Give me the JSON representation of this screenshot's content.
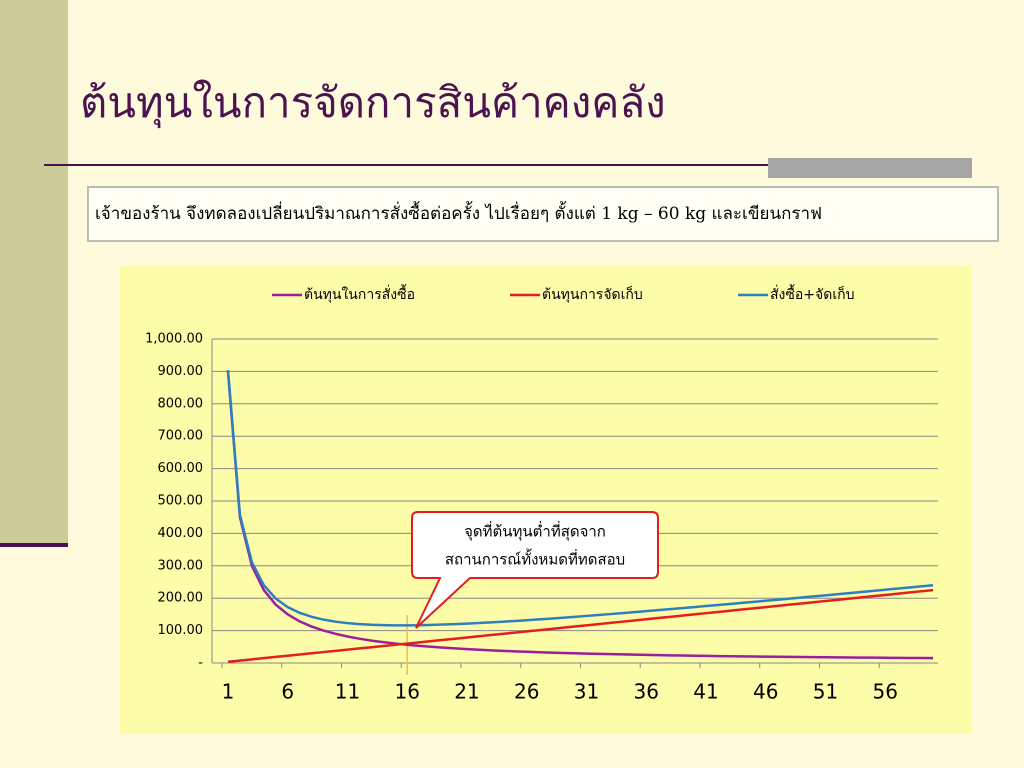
{
  "slide": {
    "title": "ต้นทุนในการจัดการสินค้าคงคลัง",
    "text": "เจ้าของร้าน จึงทดลองเปลี่ยนปริมาณการสั่งซื้อต่อครั้ง ไปเรื่อยๆ ตั้งแต่ 1 kg – 60 kg และเขียนกราฟ"
  },
  "chart_data": {
    "type": "line",
    "annotation": [
      "จุดที่ต้นทุนต่ำที่สุดจาก",
      "สถานการณ์ทั้งหมดที่ทดสอบ"
    ],
    "vline": 16,
    "x": [
      1,
      2,
      3,
      4,
      5,
      6,
      7,
      8,
      9,
      10,
      11,
      12,
      13,
      14,
      15,
      16,
      17,
      18,
      19,
      20,
      21,
      22,
      23,
      24,
      25,
      26,
      27,
      28,
      29,
      30,
      31,
      32,
      33,
      34,
      35,
      36,
      37,
      38,
      39,
      40,
      41,
      42,
      43,
      44,
      45,
      46,
      47,
      48,
      49,
      50,
      51,
      52,
      53,
      54,
      55,
      56,
      57,
      58,
      59,
      60
    ],
    "xlim": [
      0.5,
      60.5
    ],
    "xticks": [
      1,
      6,
      11,
      16,
      21,
      26,
      31,
      36,
      41,
      46,
      51,
      56
    ],
    "ylim": [
      0,
      1000
    ],
    "yticks": [
      {
        "value": 0,
        "label": "-"
      },
      {
        "value": 100,
        "label": "100.00"
      },
      {
        "value": 200,
        "label": "200.00"
      },
      {
        "value": 300,
        "label": "300.00"
      },
      {
        "value": 400,
        "label": "400.00"
      },
      {
        "value": 500,
        "label": "500.00"
      },
      {
        "value": 600,
        "label": "600.00"
      },
      {
        "value": 700,
        "label": "700.00"
      },
      {
        "value": 800,
        "label": "800.00"
      },
      {
        "value": 900,
        "label": "900.00"
      },
      {
        "value": 1000,
        "label": "1,000.00"
      }
    ],
    "grid": true,
    "legend": "top",
    "series": [
      {
        "name": "ต้นทุนในการสั่งซื้อ",
        "color": "#9a1f9e",
        "values": [
          900,
          450,
          300,
          225,
          180,
          150,
          128.6,
          112.5,
          100,
          90,
          81.8,
          75,
          69.2,
          64.3,
          60,
          56.3,
          52.9,
          50,
          47.4,
          45,
          42.9,
          40.9,
          39.1,
          37.5,
          36,
          34.6,
          33.3,
          32.1,
          31,
          30,
          29,
          28.1,
          27.3,
          26.5,
          25.7,
          25,
          24.3,
          23.7,
          23.1,
          22.5,
          22,
          21.4,
          20.9,
          20.5,
          20,
          19.6,
          19.1,
          18.8,
          18.4,
          18,
          17.6,
          17.3,
          17,
          16.7,
          16.4,
          16.1,
          15.8,
          15.5,
          15.3,
          15
        ]
      },
      {
        "name": "ต้นทุนการจัดเก็บ",
        "color": "#e31f1f",
        "values": [
          3.75,
          7.5,
          11.25,
          15,
          18.75,
          22.5,
          26.25,
          30,
          33.75,
          37.5,
          41.25,
          45,
          48.75,
          52.5,
          56.25,
          60,
          63.75,
          67.5,
          71.25,
          75,
          78.75,
          82.5,
          86.25,
          90,
          93.75,
          97.5,
          101.25,
          105,
          108.75,
          112.5,
          116.25,
          120,
          123.75,
          127.5,
          131.25,
          135,
          138.75,
          142.5,
          146.25,
          150,
          153.75,
          157.5,
          161.25,
          165,
          168.75,
          172.5,
          176.25,
          180,
          183.75,
          187.5,
          191.25,
          195,
          198.75,
          202.5,
          206.25,
          210,
          213.75,
          217.5,
          221.25,
          225
        ]
      },
      {
        "name": "สั่งซื้อ+จัดเก็บ",
        "color": "#2e7fc0",
        "values": [
          903.75,
          457.5,
          311.25,
          240,
          198.75,
          172.5,
          154.85,
          142.5,
          133.75,
          127.5,
          123.05,
          120,
          117.95,
          116.8,
          116.25,
          116.3,
          116.65,
          117.5,
          118.65,
          120,
          121.65,
          123.4,
          125.35,
          127.5,
          129.75,
          132.1,
          134.55,
          137.1,
          139.75,
          142.5,
          145.25,
          148.1,
          151.05,
          154,
          156.95,
          160,
          163.05,
          166.2,
          169.35,
          172.5,
          175.75,
          178.9,
          182.15,
          185.5,
          188.75,
          192.1,
          195.35,
          198.8,
          202.15,
          205.5,
          208.85,
          212.3,
          215.75,
          219.2,
          222.65,
          226.1,
          229.55,
          233,
          236.55,
          240
        ]
      }
    ]
  }
}
